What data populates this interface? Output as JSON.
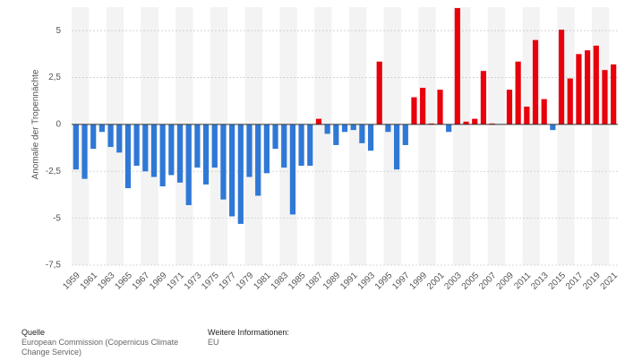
{
  "chart_data": {
    "type": "bar",
    "y_label": "Anomalie der Tropennächte",
    "categories": [
      "1959",
      null,
      "1961",
      null,
      "1963",
      null,
      "1965",
      null,
      "1967",
      null,
      "1969",
      null,
      "1971",
      null,
      "1973",
      null,
      "1975",
      null,
      "1977",
      null,
      "1979",
      null,
      "1981",
      null,
      "1983",
      null,
      "1985",
      null,
      "1987",
      null,
      "1989",
      null,
      "1991",
      null,
      "1993",
      null,
      "1995",
      null,
      "1997",
      null,
      "1999",
      null,
      "2001",
      null,
      "2003",
      null,
      "2005",
      null,
      "2007",
      null,
      "2009",
      null,
      "2011",
      null,
      "2013",
      null,
      "2015",
      null,
      "2017",
      null,
      "2019",
      null,
      "2021"
    ],
    "values": [
      -2.4,
      -2.9,
      -1.3,
      -0.4,
      -1.2,
      -1.5,
      -3.4,
      -2.2,
      -2.5,
      -2.8,
      -3.3,
      -2.7,
      -3.1,
      -4.3,
      -2.3,
      -3.2,
      -2.3,
      -4.0,
      -4.9,
      -5.3,
      -2.8,
      -3.8,
      -2.6,
      -1.3,
      -2.3,
      -4.8,
      -2.2,
      -2.2,
      0.3,
      -0.5,
      -1.1,
      -0.4,
      -0.3,
      -1.0,
      -1.4,
      3.35,
      -0.4,
      -2.4,
      -1.1,
      1.45,
      1.95,
      0.05,
      1.85,
      -0.4,
      6.2,
      0.15,
      0.3,
      2.85,
      0.05,
      0,
      1.85,
      3.35,
      0.95,
      4.5,
      1.35,
      -0.3,
      5.05,
      2.45,
      3.75,
      3.95,
      4.2,
      2.9,
      3.2
    ],
    "positive_color": "#e8000b",
    "negative_color": "#2f78d6",
    "ylim": [
      -7.5,
      6.25
    ],
    "yticks": [
      {
        "value": -7.5,
        "label": "-7,5"
      },
      -5,
      {
        "value": -2.5,
        "label": "-2,5"
      },
      0,
      {
        "value": 2.5,
        "label": "2,5"
      },
      5
    ],
    "grid": true
  },
  "footer": {
    "source_title": "Quelle",
    "source": "European Commission (Copernicus Climate Change Service)",
    "info_title": "Weitere Informationen:",
    "info": "EU"
  }
}
